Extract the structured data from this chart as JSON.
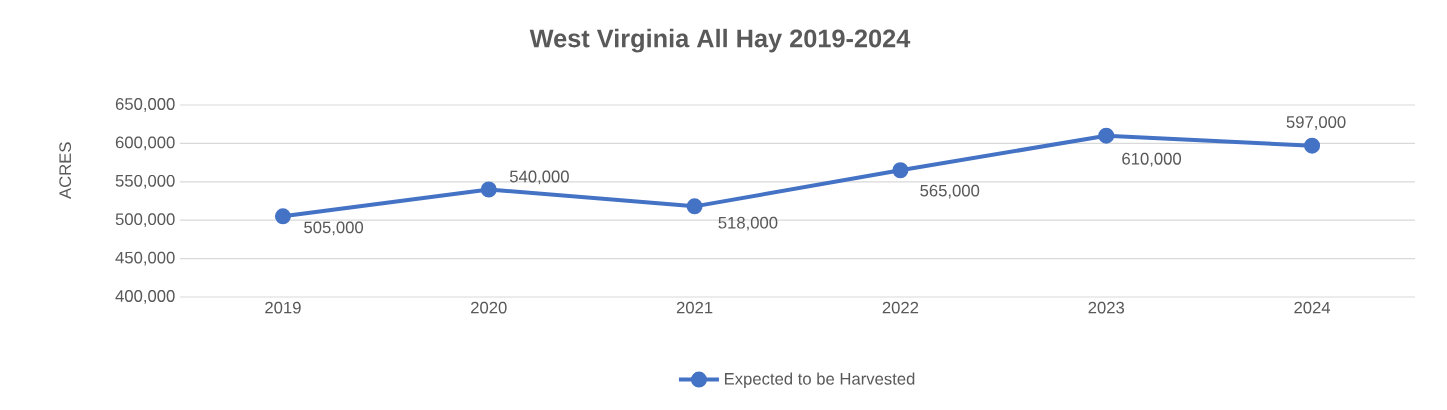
{
  "chart_data": {
    "type": "line",
    "title": "West Virginia All Hay 2019-2024",
    "ylabel": "ACRES",
    "categories": [
      "2019",
      "2020",
      "2021",
      "2022",
      "2023",
      "2024"
    ],
    "series": [
      {
        "name": "Expected to be Harvested",
        "color": "#4472c4",
        "values": [
          505000,
          540000,
          518000,
          565000,
          610000,
          597000
        ],
        "value_labels": [
          "505,000",
          "540,000",
          "518,000",
          "565,000",
          "610,000",
          "597,000"
        ]
      }
    ],
    "ylim": [
      400000,
      650000
    ],
    "yticks": [
      {
        "value": 400000,
        "label": "400,000"
      },
      {
        "value": 450000,
        "label": "450,000"
      },
      {
        "value": 500000,
        "label": "500,000"
      },
      {
        "value": 550000,
        "label": "550,000"
      },
      {
        "value": 600000,
        "label": "600,000"
      },
      {
        "value": 650000,
        "label": "650,000"
      }
    ],
    "grid": "y",
    "legend": "bottom",
    "marker": "circle",
    "line_style": "solid"
  }
}
